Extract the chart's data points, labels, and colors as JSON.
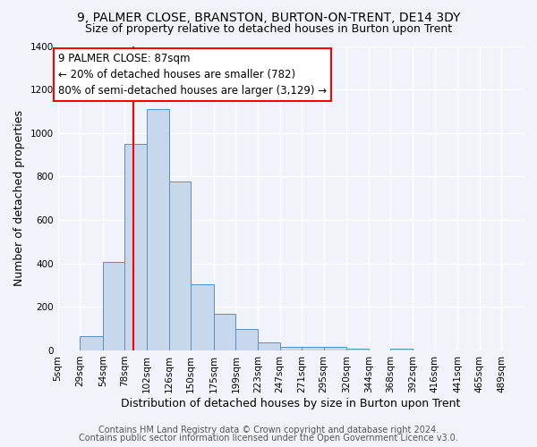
{
  "title": "9, PALMER CLOSE, BRANSTON, BURTON-ON-TRENT, DE14 3DY",
  "subtitle": "Size of property relative to detached houses in Burton upon Trent",
  "xlabel": "Distribution of detached houses by size in Burton upon Trent",
  "ylabel": "Number of detached properties",
  "footer1": "Contains HM Land Registry data © Crown copyright and database right 2024.",
  "footer2": "Contains public sector information licensed under the Open Government Licence v3.0.",
  "bin_labels": [
    "5sqm",
    "29sqm",
    "54sqm",
    "78sqm",
    "102sqm",
    "126sqm",
    "150sqm",
    "175sqm",
    "199sqm",
    "223sqm",
    "247sqm",
    "271sqm",
    "295sqm",
    "320sqm",
    "344sqm",
    "368sqm",
    "392sqm",
    "416sqm",
    "441sqm",
    "465sqm",
    "489sqm"
  ],
  "bar_heights": [
    0,
    65,
    405,
    950,
    1110,
    775,
    305,
    170,
    100,
    35,
    15,
    15,
    15,
    10,
    0,
    10,
    0,
    0,
    0,
    0,
    0
  ],
  "bar_color": "#c8d8ec",
  "bar_edge_color": "#5a8fc0",
  "red_line_x": 87,
  "bin_edges": [
    5,
    29,
    54,
    78,
    102,
    126,
    150,
    175,
    199,
    223,
    247,
    271,
    295,
    320,
    344,
    368,
    392,
    416,
    441,
    465,
    489
  ],
  "annotation_line1": "9 PALMER CLOSE: 87sqm",
  "annotation_line2": "← 20% of detached houses are smaller (782)",
  "annotation_line3": "80% of semi-detached houses are larger (3,129) →",
  "ylim": [
    0,
    1400
  ],
  "yticks": [
    0,
    200,
    400,
    600,
    800,
    1000,
    1200,
    1400
  ],
  "bg_color": "#f0f4fa",
  "plot_bg_color": "#f0f4fa",
  "grid_color": "#ffffff",
  "title_fontsize": 10,
  "subtitle_fontsize": 9,
  "xlabel_fontsize": 9,
  "ylabel_fontsize": 9,
  "tick_fontsize": 7.5,
  "footer_fontsize": 7
}
